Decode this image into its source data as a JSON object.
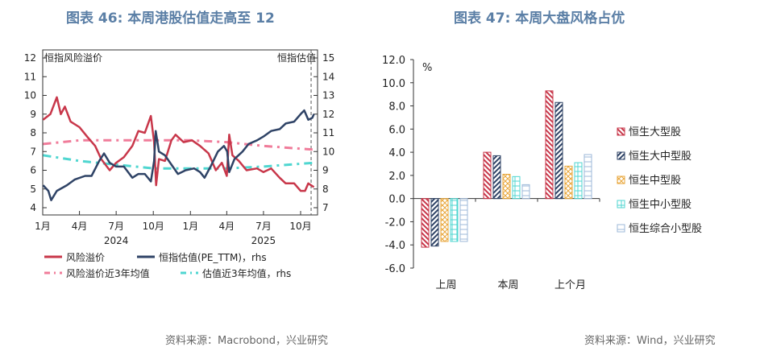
{
  "left": {
    "title": "图表 46: 本周港股估值走高至 12",
    "source": "资料来源：Macrobond，兴业研究",
    "chart_data": {
      "type": "line",
      "left_axis_label": "恒指风险溢价",
      "right_axis_label": "恒指估值",
      "ylim_left": [
        4,
        12
      ],
      "ylim_right": [
        7,
        15
      ],
      "yticks_left": [
        "4",
        "5",
        "6",
        "7",
        "8",
        "9",
        "10",
        "11",
        "12"
      ],
      "yticks_right": [
        "7",
        "8",
        "9",
        "10",
        "11",
        "12",
        "13",
        "14",
        "15"
      ],
      "xlim": [
        "2024-01-01",
        "2025-11-05"
      ],
      "xticks": [
        {
          "date": "2024-01-01",
          "label": "1月"
        },
        {
          "date": "2024-04-01",
          "label": "4月"
        },
        {
          "date": "2024-07-01",
          "label": "7月"
        },
        {
          "date": "2024-10-01",
          "label": "10月"
        },
        {
          "date": "2025-01-01",
          "label": "1月"
        },
        {
          "date": "2025-04-01",
          "label": "4月"
        },
        {
          "date": "2025-07-01",
          "label": "7月"
        },
        {
          "date": "2025-10-01",
          "label": "10月"
        }
      ],
      "year_labels": [
        {
          "date": "2024-07-01",
          "label": "2024"
        },
        {
          "date": "2025-07-01",
          "label": "2025"
        }
      ],
      "marker_line_date": "2025-10-27",
      "series": [
        {
          "name": "风险溢价",
          "axis": "left",
          "color": "#c8374a",
          "style": "solid",
          "points": [
            [
              "2024-01-02",
              8.7
            ],
            [
              "2024-01-20",
              9.0
            ],
            [
              "2024-02-05",
              9.9
            ],
            [
              "2024-02-15",
              9.0
            ],
            [
              "2024-02-25",
              9.4
            ],
            [
              "2024-03-10",
              8.6
            ],
            [
              "2024-04-01",
              8.3
            ],
            [
              "2024-04-20",
              7.8
            ],
            [
              "2024-05-10",
              7.3
            ],
            [
              "2024-05-25",
              6.6
            ],
            [
              "2024-06-15",
              6.0
            ],
            [
              "2024-07-01",
              6.4
            ],
            [
              "2024-07-20",
              6.7
            ],
            [
              "2024-08-10",
              7.3
            ],
            [
              "2024-08-25",
              8.1
            ],
            [
              "2024-09-10",
              8.0
            ],
            [
              "2024-09-25",
              8.9
            ],
            [
              "2024-10-03",
              7.5
            ],
            [
              "2024-10-08",
              5.2
            ],
            [
              "2024-10-15",
              6.6
            ],
            [
              "2024-10-30",
              6.5
            ],
            [
              "2024-11-15",
              7.6
            ],
            [
              "2024-11-25",
              7.9
            ],
            [
              "2024-12-15",
              7.5
            ],
            [
              "2025-01-05",
              7.6
            ],
            [
              "2025-01-25",
              7.3
            ],
            [
              "2025-02-15",
              6.9
            ],
            [
              "2025-03-05",
              6.0
            ],
            [
              "2025-03-20",
              6.4
            ],
            [
              "2025-04-01",
              5.7
            ],
            [
              "2025-04-07",
              7.9
            ],
            [
              "2025-04-15",
              6.8
            ],
            [
              "2025-05-01",
              6.5
            ],
            [
              "2025-05-20",
              6.0
            ],
            [
              "2025-06-15",
              6.1
            ],
            [
              "2025-07-01",
              5.9
            ],
            [
              "2025-07-20",
              6.1
            ],
            [
              "2025-08-10",
              5.6
            ],
            [
              "2025-08-25",
              5.3
            ],
            [
              "2025-09-15",
              5.3
            ],
            [
              "2025-10-01",
              4.9
            ],
            [
              "2025-10-12",
              4.9
            ],
            [
              "2025-10-20",
              5.3
            ],
            [
              "2025-11-03",
              5.1
            ]
          ]
        },
        {
          "name": "恒指估值(PE_TTM)，rhs",
          "axis": "right",
          "color": "#2f4366",
          "style": "solid",
          "points": [
            [
              "2024-01-02",
              8.2
            ],
            [
              "2024-01-15",
              7.9
            ],
            [
              "2024-01-22",
              7.4
            ],
            [
              "2024-02-05",
              7.9
            ],
            [
              "2024-03-01",
              8.2
            ],
            [
              "2024-03-20",
              8.5
            ],
            [
              "2024-04-15",
              8.7
            ],
            [
              "2024-05-01",
              8.7
            ],
            [
              "2024-05-20",
              9.5
            ],
            [
              "2024-06-01",
              9.9
            ],
            [
              "2024-06-15",
              9.4
            ],
            [
              "2024-07-01",
              9.2
            ],
            [
              "2024-07-20",
              9.2
            ],
            [
              "2024-08-10",
              8.6
            ],
            [
              "2024-08-25",
              8.8
            ],
            [
              "2024-09-10",
              8.8
            ],
            [
              "2024-09-25",
              8.4
            ],
            [
              "2024-10-03",
              9.5
            ],
            [
              "2024-10-07",
              11.1
            ],
            [
              "2024-10-15",
              10.0
            ],
            [
              "2024-10-30",
              9.8
            ],
            [
              "2024-11-15",
              9.3
            ],
            [
              "2024-12-01",
              8.8
            ],
            [
              "2024-12-20",
              9.0
            ],
            [
              "2025-01-10",
              9.1
            ],
            [
              "2025-01-25",
              8.9
            ],
            [
              "2025-02-05",
              8.6
            ],
            [
              "2025-02-20",
              9.2
            ],
            [
              "2025-03-10",
              10.0
            ],
            [
              "2025-03-25",
              10.3
            ],
            [
              "2025-04-02",
              10.0
            ],
            [
              "2025-04-07",
              8.9
            ],
            [
              "2025-04-20",
              9.6
            ],
            [
              "2025-05-10",
              10.0
            ],
            [
              "2025-05-25",
              10.4
            ],
            [
              "2025-06-15",
              10.6
            ],
            [
              "2025-07-01",
              10.8
            ],
            [
              "2025-07-20",
              11.1
            ],
            [
              "2025-08-10",
              11.2
            ],
            [
              "2025-08-25",
              11.5
            ],
            [
              "2025-09-15",
              11.6
            ],
            [
              "2025-10-01",
              12.0
            ],
            [
              "2025-10-10",
              12.2
            ],
            [
              "2025-10-20",
              11.7
            ],
            [
              "2025-10-30",
              11.8
            ],
            [
              "2025-11-03",
              12.0
            ]
          ]
        },
        {
          "name": "风险溢价近3年均值",
          "axis": "left",
          "color": "#f07c9a",
          "style": "dashdot",
          "points": [
            [
              "2024-01-02",
              7.4
            ],
            [
              "2024-04-01",
              7.6
            ],
            [
              "2024-07-01",
              7.6
            ],
            [
              "2024-10-01",
              7.6
            ],
            [
              "2025-01-01",
              7.6
            ],
            [
              "2025-04-01",
              7.5
            ],
            [
              "2025-07-01",
              7.3
            ],
            [
              "2025-11-03",
              7.1
            ]
          ]
        },
        {
          "name": "估值近3年均值，rhs",
          "axis": "right",
          "color": "#4fd6d0",
          "style": "dashdot",
          "points": [
            [
              "2024-01-02",
              9.8
            ],
            [
              "2024-04-01",
              9.5
            ],
            [
              "2024-07-01",
              9.3
            ],
            [
              "2024-10-01",
              9.1
            ],
            [
              "2025-01-01",
              9.1
            ],
            [
              "2025-04-01",
              9.1
            ],
            [
              "2025-07-01",
              9.2
            ],
            [
              "2025-11-03",
              9.4
            ]
          ]
        }
      ],
      "legend_placement": "bottom"
    }
  },
  "right": {
    "title": "图表 47: 本周大盘风格占优",
    "source": "资料来源：Wind，兴业研究",
    "chart_data": {
      "type": "bar",
      "unit_label": "%",
      "ylim": [
        -6,
        12
      ],
      "yticks": [
        "-6.0",
        "-4.0",
        "-2.0",
        "0.0",
        "2.0",
        "4.0",
        "6.0",
        "8.0",
        "10.0",
        "12.0"
      ],
      "categories": [
        "上周",
        "本周",
        "上个月"
      ],
      "series": [
        {
          "name": "恒生大型股",
          "color": "#c8374a",
          "pattern": "backslash",
          "values": [
            -4.2,
            4.0,
            9.3
          ]
        },
        {
          "name": "恒生大中型股",
          "color": "#2f4366",
          "pattern": "slash",
          "values": [
            -4.1,
            3.7,
            8.3
          ]
        },
        {
          "name": "恒生中型股",
          "color": "#e8a63a",
          "pattern": "cross",
          "values": [
            -3.7,
            2.1,
            2.8
          ]
        },
        {
          "name": "恒生中小型股",
          "color": "#4fd6d0",
          "pattern": "grid",
          "values": [
            -3.7,
            1.9,
            3.1
          ]
        },
        {
          "name": "恒生综合小型股",
          "color": "#9db8d8",
          "pattern": "horizontal",
          "values": [
            -3.7,
            1.2,
            3.8
          ]
        }
      ],
      "legend_placement": "right"
    }
  }
}
